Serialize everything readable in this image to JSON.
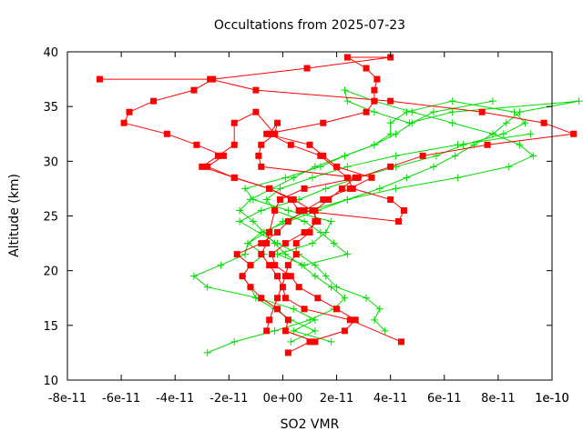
{
  "chart_data": {
    "type": "line",
    "title": "Occultations from 2025-07-23",
    "xlabel": "SO2 VMR",
    "ylabel": "Altitude (km)",
    "xlim": [
      -8e-11,
      1e-10
    ],
    "ylim": [
      10,
      40
    ],
    "x_tick_labels": [
      "-8e-11",
      "-6e-11",
      "-4e-11",
      "-2e-11",
      "0e+00",
      "2e-11",
      "4e-11",
      "6e-11",
      "8e-11",
      "1e-10"
    ],
    "x_tick_values": [
      -8e-11,
      -6e-11,
      -4e-11,
      -2e-11,
      0,
      2e-11,
      4e-11,
      6e-11,
      8e-11,
      1e-10
    ],
    "y_ticks": [
      10,
      15,
      20,
      25,
      30,
      35,
      40
    ],
    "right_edge_label": "1e-10",
    "grid": false,
    "series": [
      {
        "color": "#ff0000",
        "marker": "square",
        "points": [
          [
            4.4e-11,
            13.5
          ],
          [
            2.5e-11,
            15.5
          ],
          [
            8e-12,
            16.5
          ],
          [
            1e-12,
            17.5
          ],
          [
            0,
            18.5
          ],
          [
            -2e-12,
            19.5
          ],
          [
            -5e-12,
            20.5
          ],
          [
            -8e-12,
            21.5
          ],
          [
            -6e-12,
            22.5
          ],
          [
            -5e-12,
            23.5
          ],
          [
            -3e-12,
            25.5
          ],
          [
            -1e-12,
            26.5
          ],
          [
            8e-12,
            27.5
          ],
          [
            2.8e-11,
            28.5
          ],
          [
            4e-11,
            29.5
          ],
          [
            5.2e-11,
            30.5
          ],
          [
            7.6e-11,
            31.5
          ],
          [
            1.08e-10,
            32.5
          ],
          [
            9.7e-11,
            33.5
          ],
          [
            7.4e-11,
            34.5
          ],
          [
            4e-11,
            35.5
          ],
          [
            -1e-11,
            36.5
          ],
          [
            -2.7e-11,
            37.5
          ],
          [
            -6.8e-11,
            37.5
          ]
        ]
      },
      {
        "color": "#ff0000",
        "marker": "square",
        "points": [
          [
            1.2e-11,
            13.5
          ],
          [
            1e-12,
            14.5
          ],
          [
            2e-12,
            15.5
          ],
          [
            -2e-12,
            16.5
          ],
          [
            -8e-12,
            17.5
          ],
          [
            -1.2e-11,
            18.5
          ],
          [
            -1.5e-11,
            19.5
          ],
          [
            -1.2e-11,
            20.5
          ],
          [
            -1.7e-11,
            21.5
          ],
          [
            -8e-12,
            22.5
          ],
          [
            -2e-12,
            23.5
          ],
          [
            2e-12,
            24.5
          ],
          [
            8e-12,
            25.5
          ],
          [
            1.5e-11,
            26.5
          ],
          [
            2.5e-11,
            27.5
          ],
          [
            3.3e-11,
            28.5
          ],
          [
            2e-11,
            29.5
          ],
          [
            1.5e-11,
            30.5
          ],
          [
            1e-11,
            31.5
          ],
          [
            -6e-12,
            32.5
          ],
          [
            1.5e-11,
            33.5
          ],
          [
            3.1e-11,
            34.5
          ],
          [
            3.4e-11,
            35.5
          ],
          [
            3.4e-11,
            36.5
          ],
          [
            3.5e-11,
            37.5
          ],
          [
            3.1e-11,
            38.5
          ],
          [
            2.4e-11,
            39.5
          ],
          [
            4e-11,
            39.5
          ],
          [
            9e-12,
            38.5
          ],
          [
            -2.6e-11,
            37.5
          ],
          [
            -3.3e-11,
            36.5
          ],
          [
            -4.8e-11,
            35.5
          ],
          [
            -5.7e-11,
            34.5
          ],
          [
            -5.9e-11,
            33.5
          ],
          [
            -4.3e-11,
            32.5
          ],
          [
            -3.2e-11,
            31.5
          ],
          [
            -2.2e-11,
            30.5
          ],
          [
            -2.8e-11,
            29.5
          ],
          [
            -1.8e-11,
            28.5
          ],
          [
            -5e-12,
            27.5
          ],
          [
            4e-12,
            26.5
          ],
          [
            1.1e-11,
            25.5
          ],
          [
            1.3e-11,
            24.5
          ],
          [
            8e-12,
            23.5
          ],
          [
            1e-12,
            22.5
          ],
          [
            -4e-12,
            21.5
          ],
          [
            -3e-12,
            20.5
          ],
          [
            3e-12,
            19.5
          ],
          [
            6e-12,
            18.5
          ],
          [
            1.3e-11,
            17.5
          ],
          [
            2e-11,
            16.5
          ],
          [
            2.7e-11,
            15.5
          ],
          [
            2.3e-11,
            14.5
          ],
          [
            1e-11,
            13.5
          ],
          [
            2e-12,
            12.5
          ]
        ]
      },
      {
        "color": "#ff0000",
        "marker": "square",
        "points": [
          [
            -6e-12,
            14.5
          ],
          [
            -5e-12,
            15.5
          ],
          [
            -2e-12,
            17.5
          ],
          [
            1e-12,
            19.5
          ],
          [
            2e-12,
            20.5
          ],
          [
            5e-12,
            21.5
          ],
          [
            5e-12,
            22.5
          ],
          [
            1e-11,
            23.5
          ],
          [
            1.2e-11,
            24.5
          ],
          [
            1.2e-11,
            25.5
          ],
          [
            1.7e-11,
            26.5
          ],
          [
            2.2e-11,
            27.5
          ],
          [
            2.7e-11,
            28.5
          ],
          [
            -8e-12,
            29.5
          ],
          [
            -9e-12,
            30.5
          ],
          [
            -8e-12,
            31.5
          ],
          [
            -3e-12,
            32.5
          ],
          [
            -1e-11,
            34.5
          ],
          [
            -1.8e-11,
            33.5
          ],
          [
            -1.8e-11,
            31.5
          ],
          [
            -2.4e-11,
            30.5
          ],
          [
            -3e-11,
            29.5
          ],
          [
            -1.8e-11,
            28.5
          ],
          [
            -5e-12,
            27.5
          ],
          [
            3e-12,
            26.5
          ],
          [
            6e-12,
            25.5
          ],
          [
            4.3e-11,
            24.5
          ],
          [
            4.5e-11,
            25.5
          ],
          [
            4e-11,
            26.5
          ],
          [
            2.6e-11,
            27.5
          ],
          [
            2.4e-11,
            28.5
          ],
          [
            1.4e-11,
            30.5
          ],
          [
            3e-12,
            31.5
          ],
          [
            -5e-12,
            32.5
          ],
          [
            -2e-12,
            33.5
          ],
          [
            -3e-12,
            32.5
          ]
        ]
      },
      {
        "color": "#00dd00",
        "marker": "plus",
        "points": [
          [
            -2.8e-11,
            12.5
          ],
          [
            -1.8e-11,
            13.5
          ],
          [
            -3e-12,
            14.5
          ],
          [
            1e-11,
            15.5
          ],
          [
            1.9e-11,
            16.5
          ],
          [
            2.3e-11,
            17.5
          ],
          [
            1.8e-11,
            18.5
          ],
          [
            1.2e-11,
            19.5
          ],
          [
            7e-12,
            20.5
          ],
          [
            1e-12,
            21.5
          ],
          [
            -3e-12,
            22.5
          ],
          [
            -7e-12,
            23.5
          ],
          [
            -1.1e-11,
            24.5
          ],
          [
            -1.6e-11,
            25.5
          ],
          [
            -1.2e-11,
            26.5
          ],
          [
            -4e-12,
            27.5
          ],
          [
            4e-12,
            28.5
          ],
          [
            1.2e-11,
            29.5
          ],
          [
            2.3e-11,
            30.5
          ],
          [
            3.4e-11,
            31.5
          ],
          [
            4.2e-11,
            32.5
          ],
          [
            4.8e-11,
            33.5
          ],
          [
            5.6e-11,
            34.5
          ],
          [
            7.8e-11,
            35.5
          ]
        ]
      },
      {
        "color": "#00dd00",
        "marker": "plus",
        "points": [
          [
            3e-12,
            13.5
          ],
          [
            1.2e-11,
            14.5
          ],
          [
            3e-12,
            15.5
          ],
          [
            -3e-12,
            16.5
          ],
          [
            -1e-11,
            17.5
          ],
          [
            -1.2e-11,
            18.5
          ],
          [
            -1.5e-11,
            19.5
          ],
          [
            -1.2e-11,
            20.5
          ],
          [
            -7e-12,
            21.5
          ],
          [
            -1.3e-11,
            22.5
          ],
          [
            -8e-12,
            23.5
          ],
          [
            2e-12,
            24.5
          ],
          [
            1.3e-11,
            25.5
          ],
          [
            2.4e-11,
            26.5
          ],
          [
            3.6e-11,
            27.5
          ],
          [
            4.6e-11,
            28.5
          ],
          [
            5.6e-11,
            29.5
          ],
          [
            6.4e-11,
            30.5
          ],
          [
            7.1e-11,
            31.5
          ],
          [
            7.8e-11,
            32.5
          ],
          [
            8.3e-11,
            33.5
          ],
          [
            8.8e-11,
            34.5
          ],
          [
            1.1e-10,
            35.5
          ],
          [
            6.3e-11,
            34.5
          ],
          [
            4.7e-11,
            33.5
          ],
          [
            3.4e-11,
            34.5
          ],
          [
            2.4e-11,
            35.5
          ],
          [
            2.3e-11,
            36.5
          ],
          [
            3.4e-11,
            35.5
          ],
          [
            4.8e-11,
            34.5
          ],
          [
            6.3e-11,
            33.5
          ],
          [
            7.8e-11,
            32.5
          ],
          [
            8.8e-11,
            31.5
          ],
          [
            9.3e-11,
            30.5
          ],
          [
            8.4e-11,
            29.5
          ],
          [
            6.5e-11,
            28.5
          ],
          [
            4.2e-11,
            27.5
          ],
          [
            2.4e-11,
            26.5
          ],
          [
            1e-11,
            25.5
          ],
          [
            0,
            24.5
          ],
          [
            -6e-12,
            23.5
          ],
          [
            -1.3e-11,
            22.5
          ],
          [
            -1.4e-11,
            21.5
          ],
          [
            -2.3e-11,
            20.5
          ],
          [
            -3.3e-11,
            19.5
          ],
          [
            -2.8e-11,
            18.5
          ],
          [
            -9e-12,
            17.5
          ],
          [
            4e-12,
            16.5
          ],
          [
            1.2e-11,
            15.5
          ],
          [
            4e-12,
            14.5
          ],
          [
            1.8e-11,
            13.5
          ]
        ]
      },
      {
        "color": "#00dd00",
        "marker": "plus",
        "points": [
          [
            3.8e-11,
            14.5
          ],
          [
            3.4e-11,
            15.5
          ],
          [
            3.6e-11,
            16.5
          ],
          [
            3.1e-11,
            17.5
          ],
          [
            2e-11,
            18.5
          ],
          [
            1.6e-11,
            19.5
          ],
          [
            1.2e-11,
            20.5
          ],
          [
            6e-12,
            21.5
          ],
          [
            -2e-12,
            22.5
          ],
          [
            -1.6e-11,
            24.5
          ],
          [
            -8e-12,
            25.5
          ],
          [
            6e-12,
            26.5
          ],
          [
            1.6e-11,
            27.5
          ],
          [
            2.8e-11,
            28.5
          ],
          [
            4.2e-11,
            29.5
          ],
          [
            5.7e-11,
            30.5
          ],
          [
            6.7e-11,
            31.5
          ],
          [
            8.2e-11,
            32.5
          ],
          [
            9e-11,
            33.5
          ],
          [
            8.6e-11,
            34.5
          ],
          [
            6.3e-11,
            35.5
          ],
          [
            4.6e-11,
            34.5
          ],
          [
            4e-11,
            33.5
          ],
          [
            4e-11,
            32.5
          ],
          [
            3.4e-11,
            31.5
          ],
          [
            2.3e-11,
            30.5
          ],
          [
            1.4e-11,
            29.5
          ],
          [
            1e-12,
            28.5
          ],
          [
            -1.4e-11,
            27.5
          ],
          [
            -1.1e-11,
            26.5
          ],
          [
            2e-12,
            25.5
          ],
          [
            1.8e-11,
            24.5
          ],
          [
            1.6e-11,
            23.5
          ],
          [
            1.1e-11,
            22.5
          ],
          [
            -2e-12,
            21.5
          ],
          [
            8e-12,
            20.5
          ],
          [
            2.4e-11,
            21.5
          ],
          [
            1.9e-11,
            22.5
          ],
          [
            1.4e-11,
            23.5
          ],
          [
            8e-12,
            24.5
          ],
          [
            -3e-12,
            25.5
          ],
          [
            -6e-12,
            26.5
          ],
          [
            -1e-12,
            27.5
          ],
          [
            1.1e-11,
            28.5
          ],
          [
            2.4e-11,
            29.5
          ],
          [
            4.2e-11,
            30.5
          ],
          [
            6.5e-11,
            31.5
          ],
          [
            9.2e-11,
            32.5
          ]
        ]
      }
    ]
  }
}
